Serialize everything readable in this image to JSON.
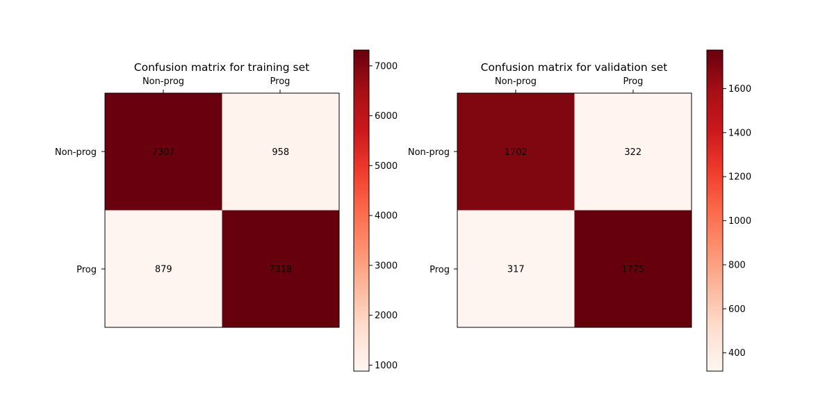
{
  "chart_data": [
    {
      "type": "heatmap",
      "title": "Confusion matrix for training set",
      "x_categories": [
        "Non-prog",
        "Prog"
      ],
      "y_categories": [
        "Non-prog",
        "Prog"
      ],
      "values": [
        [
          7307,
          958
        ],
        [
          879,
          7318
        ]
      ],
      "colormap": "Reds",
      "colorbar": {
        "min": 879,
        "max": 7318,
        "ticks": [
          1000,
          2000,
          3000,
          4000,
          5000,
          6000,
          7000
        ],
        "tick_labels": [
          "1000",
          "2000",
          "3000",
          "4000",
          "5000",
          "6000",
          "7000"
        ]
      },
      "grid": false,
      "xlabel": "",
      "ylabel": ""
    },
    {
      "type": "heatmap",
      "title": "Confusion matrix for validation set",
      "x_categories": [
        "Non-prog",
        "Prog"
      ],
      "y_categories": [
        "Non-prog",
        "Prog"
      ],
      "values": [
        [
          1702,
          322
        ],
        [
          317,
          1775
        ]
      ],
      "colormap": "Reds",
      "colorbar": {
        "min": 317,
        "max": 1775,
        "ticks": [
          400,
          600,
          800,
          1000,
          1200,
          1400,
          1600
        ],
        "tick_labels": [
          "400",
          "600",
          "800",
          "1000",
          "1200",
          "1400",
          "1600"
        ]
      },
      "grid": false,
      "xlabel": "",
      "ylabel": ""
    }
  ]
}
